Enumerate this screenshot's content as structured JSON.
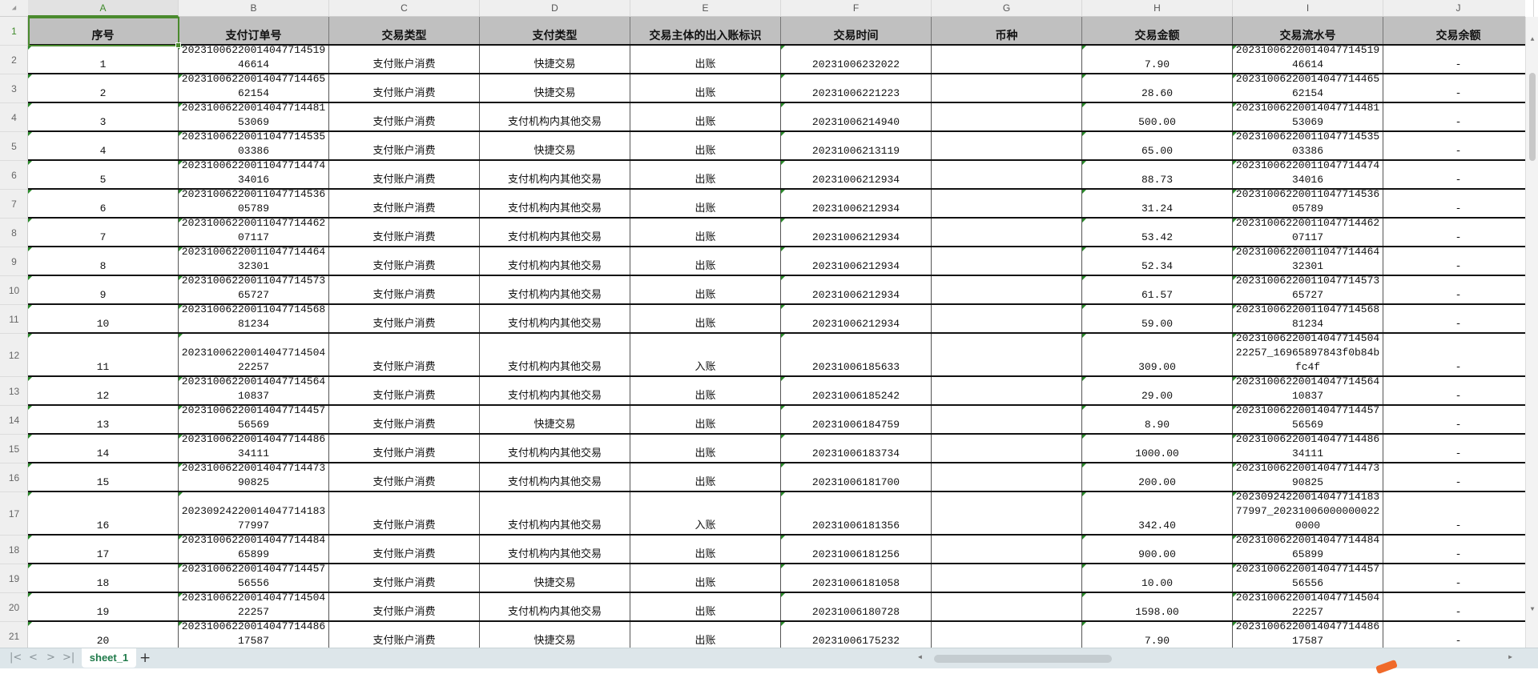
{
  "sheet": {
    "columns": [
      "A",
      "B",
      "C",
      "D",
      "E",
      "F",
      "G",
      "H",
      "I",
      "J"
    ],
    "selected_cell": "A1",
    "header": [
      "序号",
      "支付订单号",
      "交易类型",
      "支付类型",
      "交易主体的出入账标识",
      "交易时间",
      "币种",
      "交易金额",
      "交易流水号",
      "交易余额"
    ],
    "rows": [
      [
        "1",
        "20231006220014047714​51946614",
        "支付账户消费",
        "快捷交易",
        "出账",
        "20231006232022",
        "",
        "7.90",
        "20231006220014047714​51946614",
        "-"
      ],
      [
        "2",
        "202310062200140477144​6562154",
        "支付账户消费",
        "快捷交易",
        "出账",
        "20231006221223",
        "",
        "28.60",
        "202310062200140477144​6562154",
        "-"
      ],
      [
        "3",
        "202310062200140477144​8153069",
        "支付账户消费",
        "支付机构内其他交易",
        "出账",
        "20231006214940",
        "",
        "500.00",
        "202310062200140477144​8153069",
        "-"
      ],
      [
        "4",
        "202310062200110477145​3503386",
        "支付账户消费",
        "快捷交易",
        "出账",
        "20231006213119",
        "",
        "65.00",
        "202310062200110477145​3503386",
        "-"
      ],
      [
        "5",
        "202310062200110477144​7434016",
        "支付账户消费",
        "支付机构内其他交易",
        "出账",
        "20231006212934",
        "",
        "88.73",
        "202310062200110477144​7434016",
        "-"
      ],
      [
        "6",
        "202310062200110477145​3605789",
        "支付账户消费",
        "支付机构内其他交易",
        "出账",
        "20231006212934",
        "",
        "31.24",
        "202310062200110477145​3605789",
        "-"
      ],
      [
        "7",
        "202310062200110477144​6207117",
        "支付账户消费",
        "支付机构内其他交易",
        "出账",
        "20231006212934",
        "",
        "53.42",
        "202310062200110477144​6207117",
        "-"
      ],
      [
        "8",
        "202310062200110477144​6432301",
        "支付账户消费",
        "支付机构内其他交易",
        "出账",
        "20231006212934",
        "",
        "52.34",
        "202310062200110477144​6432301",
        "-"
      ],
      [
        "9",
        "202310062200110477145​7365727",
        "支付账户消费",
        "支付机构内其他交易",
        "出账",
        "20231006212934",
        "",
        "61.57",
        "202310062200110477145​7365727",
        "-"
      ],
      [
        "10",
        "202310062200110477145​6881234",
        "支付账户消费",
        "支付机构内其他交易",
        "出账",
        "20231006212934",
        "",
        "59.00",
        "202310062200110477145​6881234",
        "-"
      ],
      [
        "11",
        "202310062200140477145​0422257",
        "支付账户消费",
        "支付机构内其他交易",
        "入账",
        "20231006185633",
        "",
        "309.00",
        "202310062200140477145​0422257_16965897843f0b8​4bfc4f",
        "-"
      ],
      [
        "12",
        "202310062200140477145​6410837",
        "支付账户消费",
        "支付机构内其他交易",
        "出账",
        "20231006185242",
        "",
        "29.00",
        "202310062200140477145​6410837",
        "-"
      ],
      [
        "13",
        "202310062200140477144​5756569",
        "支付账户消费",
        "快捷交易",
        "出账",
        "20231006184759",
        "",
        "8.90",
        "202310062200140477144​5756569",
        "-"
      ],
      [
        "14",
        "202310062200140477144​8634111",
        "支付账户消费",
        "支付机构内其他交易",
        "出账",
        "20231006183734",
        "",
        "1000.00",
        "202310062200140477144​8634111",
        "-"
      ],
      [
        "15",
        "202310062200140477144​7390825",
        "支付账户消费",
        "支付机构内其他交易",
        "出账",
        "20231006181700",
        "",
        "200.00",
        "202310062200140477144​7390825",
        "-"
      ],
      [
        "16",
        "202309242200140477141​8377997",
        "支付账户消费",
        "支付机构内其他交易",
        "入账",
        "20231006181356",
        "",
        "342.40",
        "202309242200140477141​8377997_202310060000000​220000",
        "-"
      ],
      [
        "17",
        "202310062200140477144​8465899",
        "支付账户消费",
        "支付机构内其他交易",
        "出账",
        "20231006181256",
        "",
        "900.00",
        "202310062200140477144​8465899",
        "-"
      ],
      [
        "18",
        "202310062200140477144​5756556",
        "支付账户消费",
        "快捷交易",
        "出账",
        "20231006181058",
        "",
        "10.00",
        "202310062200140477144​5756556",
        "-"
      ],
      [
        "19",
        "202310062200140477145​0422257",
        "支付账户消费",
        "支付机构内其他交易",
        "出账",
        "20231006180728",
        "",
        "1598.00",
        "202310062200140477145​0422257",
        "-"
      ],
      [
        "20",
        "202310062200140477144​8617587",
        "支付账户消费",
        "快捷交易",
        "出账",
        "20231006175232",
        "",
        "7.90",
        "202310062200140477144​8617587",
        "-"
      ]
    ]
  },
  "tabs": {
    "sheets": [
      "sheet_1"
    ],
    "add_label": "+",
    "nav": [
      "|<",
      "<",
      ">",
      ">|"
    ]
  },
  "colors": {
    "accent": "#4a8a2e",
    "header_fill": "#c0c0c0",
    "tab_text": "#1f7a4a",
    "tabbar": "#dde6ea"
  }
}
